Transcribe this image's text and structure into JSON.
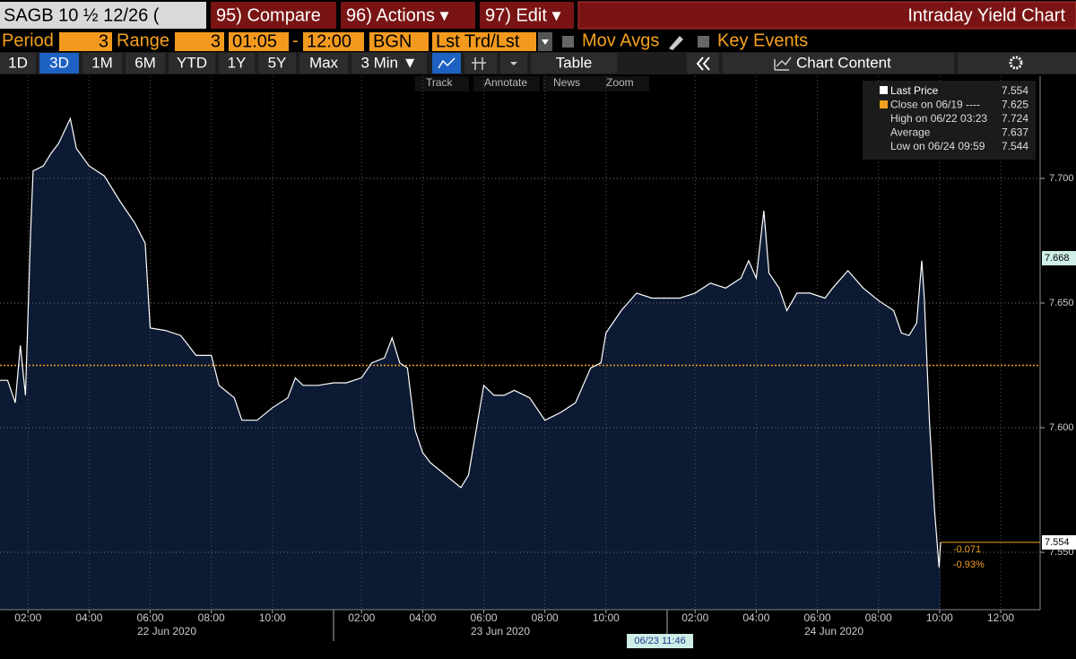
{
  "header": {
    "security": "SAGB 10 ½ 12/26 (",
    "buttons": [
      "95) Compare",
      "96) Actions ▾",
      "97) Edit ▾"
    ],
    "title": "Intraday Yield Chart"
  },
  "settings": {
    "period_label": "Period",
    "period": "3",
    "range_label": "Range",
    "range": "3",
    "range_start": "01:05",
    "range_sep": "-",
    "range_end": "12:00",
    "bgn": "BGN",
    "source": "Lst Trd/Lst",
    "mov_avgs": "Mov Avgs",
    "key_events": "Key Events"
  },
  "ranges": [
    "1D",
    "3D",
    "1M",
    "6M",
    "YTD",
    "1Y",
    "5Y",
    "Max",
    "3 Min ▼"
  ],
  "table": "Table",
  "chart_content": "Chart Content",
  "tools": [
    "Track",
    "Annotate",
    "News",
    "Zoom"
  ],
  "chart_data": {
    "type": "area",
    "x": [
      "06/22 01:05",
      "06/22 01:20",
      "06/22 01:35",
      "06/22 01:45",
      "06/22 01:55",
      "06/22 02:05",
      "06/22 02:10",
      "06/22 02:30",
      "06/22 02:45",
      "06/22 03:00",
      "06/22 03:23",
      "06/22 03:35",
      "06/22 04:00",
      "06/22 04:30",
      "06/22 05:00",
      "06/22 05:30",
      "06/22 05:50",
      "06/22 06:00",
      "06/22 06:30",
      "06/22 07:00",
      "06/22 07:30",
      "06/22 08:00",
      "06/22 08:15",
      "06/22 08:45",
      "06/22 09:00",
      "06/22 09:30",
      "06/22 10:00",
      "06/22 10:30",
      "06/22 10:45",
      "06/22 11:00",
      "06/22 11:30",
      "06/22 12:00",
      "06/23 01:05",
      "06/23 01:30",
      "06/23 02:00",
      "06/23 02:20",
      "06/23 02:45",
      "06/23 03:00",
      "06/23 03:15",
      "06/23 03:30",
      "06/23 03:45",
      "06/23 04:00",
      "06/23 04:15",
      "06/23 04:45",
      "06/23 05:15",
      "06/23 05:30",
      "06/23 05:45",
      "06/23 06:00",
      "06/23 06:20",
      "06/23 06:40",
      "06/23 07:00",
      "06/23 07:30",
      "06/23 08:00",
      "06/23 08:30",
      "06/23 09:00",
      "06/23 09:30",
      "06/23 09:50",
      "06/23 10:00",
      "06/23 10:30",
      "06/23 11:00",
      "06/23 11:30",
      "06/23 12:00",
      "06/24 01:05",
      "06/24 01:30",
      "06/24 02:00",
      "06/24 02:30",
      "06/24 03:00",
      "06/24 03:30",
      "06/24 03:45",
      "06/24 04:00",
      "06/24 04:15",
      "06/24 04:25",
      "06/24 04:45",
      "06/24 05:00",
      "06/24 05:20",
      "06/24 05:45",
      "06/24 06:15",
      "06/24 06:30",
      "06/24 07:00",
      "06/24 07:30",
      "06/24 08:00",
      "06/24 08:30",
      "06/24 08:45",
      "06/24 09:00",
      "06/24 09:15",
      "06/24 09:25",
      "06/24 09:30",
      "06/24 09:40",
      "06/24 09:50",
      "06/24 09:59",
      "06/24 10:02"
    ],
    "series": [
      {
        "color": "#ffffff",
        "values": [
          7.619,
          7.619,
          7.61,
          7.633,
          7.613,
          7.678,
          7.703,
          7.705,
          7.71,
          7.714,
          7.724,
          7.712,
          7.705,
          7.701,
          7.691,
          7.682,
          7.674,
          7.64,
          7.639,
          7.637,
          7.629,
          7.629,
          7.617,
          7.612,
          7.603,
          7.603,
          7.608,
          7.612,
          7.62,
          7.617,
          7.617,
          7.618,
          7.618,
          7.618,
          7.62,
          7.626,
          7.628,
          7.636,
          7.626,
          7.624,
          7.599,
          7.59,
          7.586,
          7.581,
          7.576,
          7.581,
          7.599,
          7.617,
          7.613,
          7.613,
          7.615,
          7.612,
          7.603,
          7.606,
          7.61,
          7.624,
          7.626,
          7.638,
          7.647,
          7.654,
          7.652,
          7.652,
          7.652,
          7.652,
          7.654,
          7.658,
          7.656,
          7.66,
          7.667,
          7.66,
          7.687,
          7.662,
          7.656,
          7.647,
          7.654,
          7.654,
          7.652,
          7.656,
          7.663,
          7.656,
          7.651,
          7.647,
          7.638,
          7.637,
          7.642,
          7.667,
          7.652,
          7.603,
          7.567,
          7.544,
          7.554
        ]
      }
    ],
    "ylim": [
      7.527,
      7.741
    ],
    "yticks": [
      {
        "value": 7.55,
        "label": "7.550"
      },
      {
        "value": 7.6,
        "label": "7.600"
      },
      {
        "value": 7.65,
        "label": "7.650"
      },
      {
        "value": 7.7,
        "label": "7.700"
      }
    ],
    "xticks": [
      {
        "value": "06/22 02:00",
        "label": "02:00"
      },
      {
        "value": "06/22 04:00",
        "label": "04:00"
      },
      {
        "value": "06/22 06:00",
        "label": "06:00"
      },
      {
        "value": "06/22 08:00",
        "label": "08:00"
      },
      {
        "value": "06/22 10:00",
        "label": "10:00"
      },
      {
        "value": "06/23 02:00",
        "label": "02:00"
      },
      {
        "value": "06/23 04:00",
        "label": "04:00"
      },
      {
        "value": "06/23 06:00",
        "label": "06:00"
      },
      {
        "value": "06/23 08:00",
        "label": "08:00"
      },
      {
        "value": "06/23 10:00",
        "label": "10:00"
      },
      {
        "value": "06/24 02:00",
        "label": "02:00"
      },
      {
        "value": "06/24 04:00",
        "label": "04:00"
      },
      {
        "value": "06/24 06:00",
        "label": "06:00"
      },
      {
        "value": "06/24 08:00",
        "label": "08:00"
      },
      {
        "value": "06/24 10:00",
        "label": "10:00"
      },
      {
        "value": "06/24 12:00",
        "label": "12:00"
      }
    ],
    "day_labels": [
      "22 Jun 2020",
      "23 Jun 2020",
      "24 Jun 2020"
    ],
    "grid": true,
    "reference_color": "#f0a020",
    "legend": [
      {
        "label": "Last Price",
        "value": 7.554
      },
      {
        "label": "Close on 06/19 ----",
        "value": 7.625
      },
      {
        "label": "High on 06/22 03:23",
        "value": 7.724
      },
      {
        "label": "Average",
        "value": 7.637
      },
      {
        "label": "Low on 06/24 09:59",
        "value": 7.544
      }
    ],
    "crosshair": {
      "x": "06/23 11:46",
      "y": 7.668
    },
    "change": "-0.071",
    "change_pct": "-0.93%"
  }
}
